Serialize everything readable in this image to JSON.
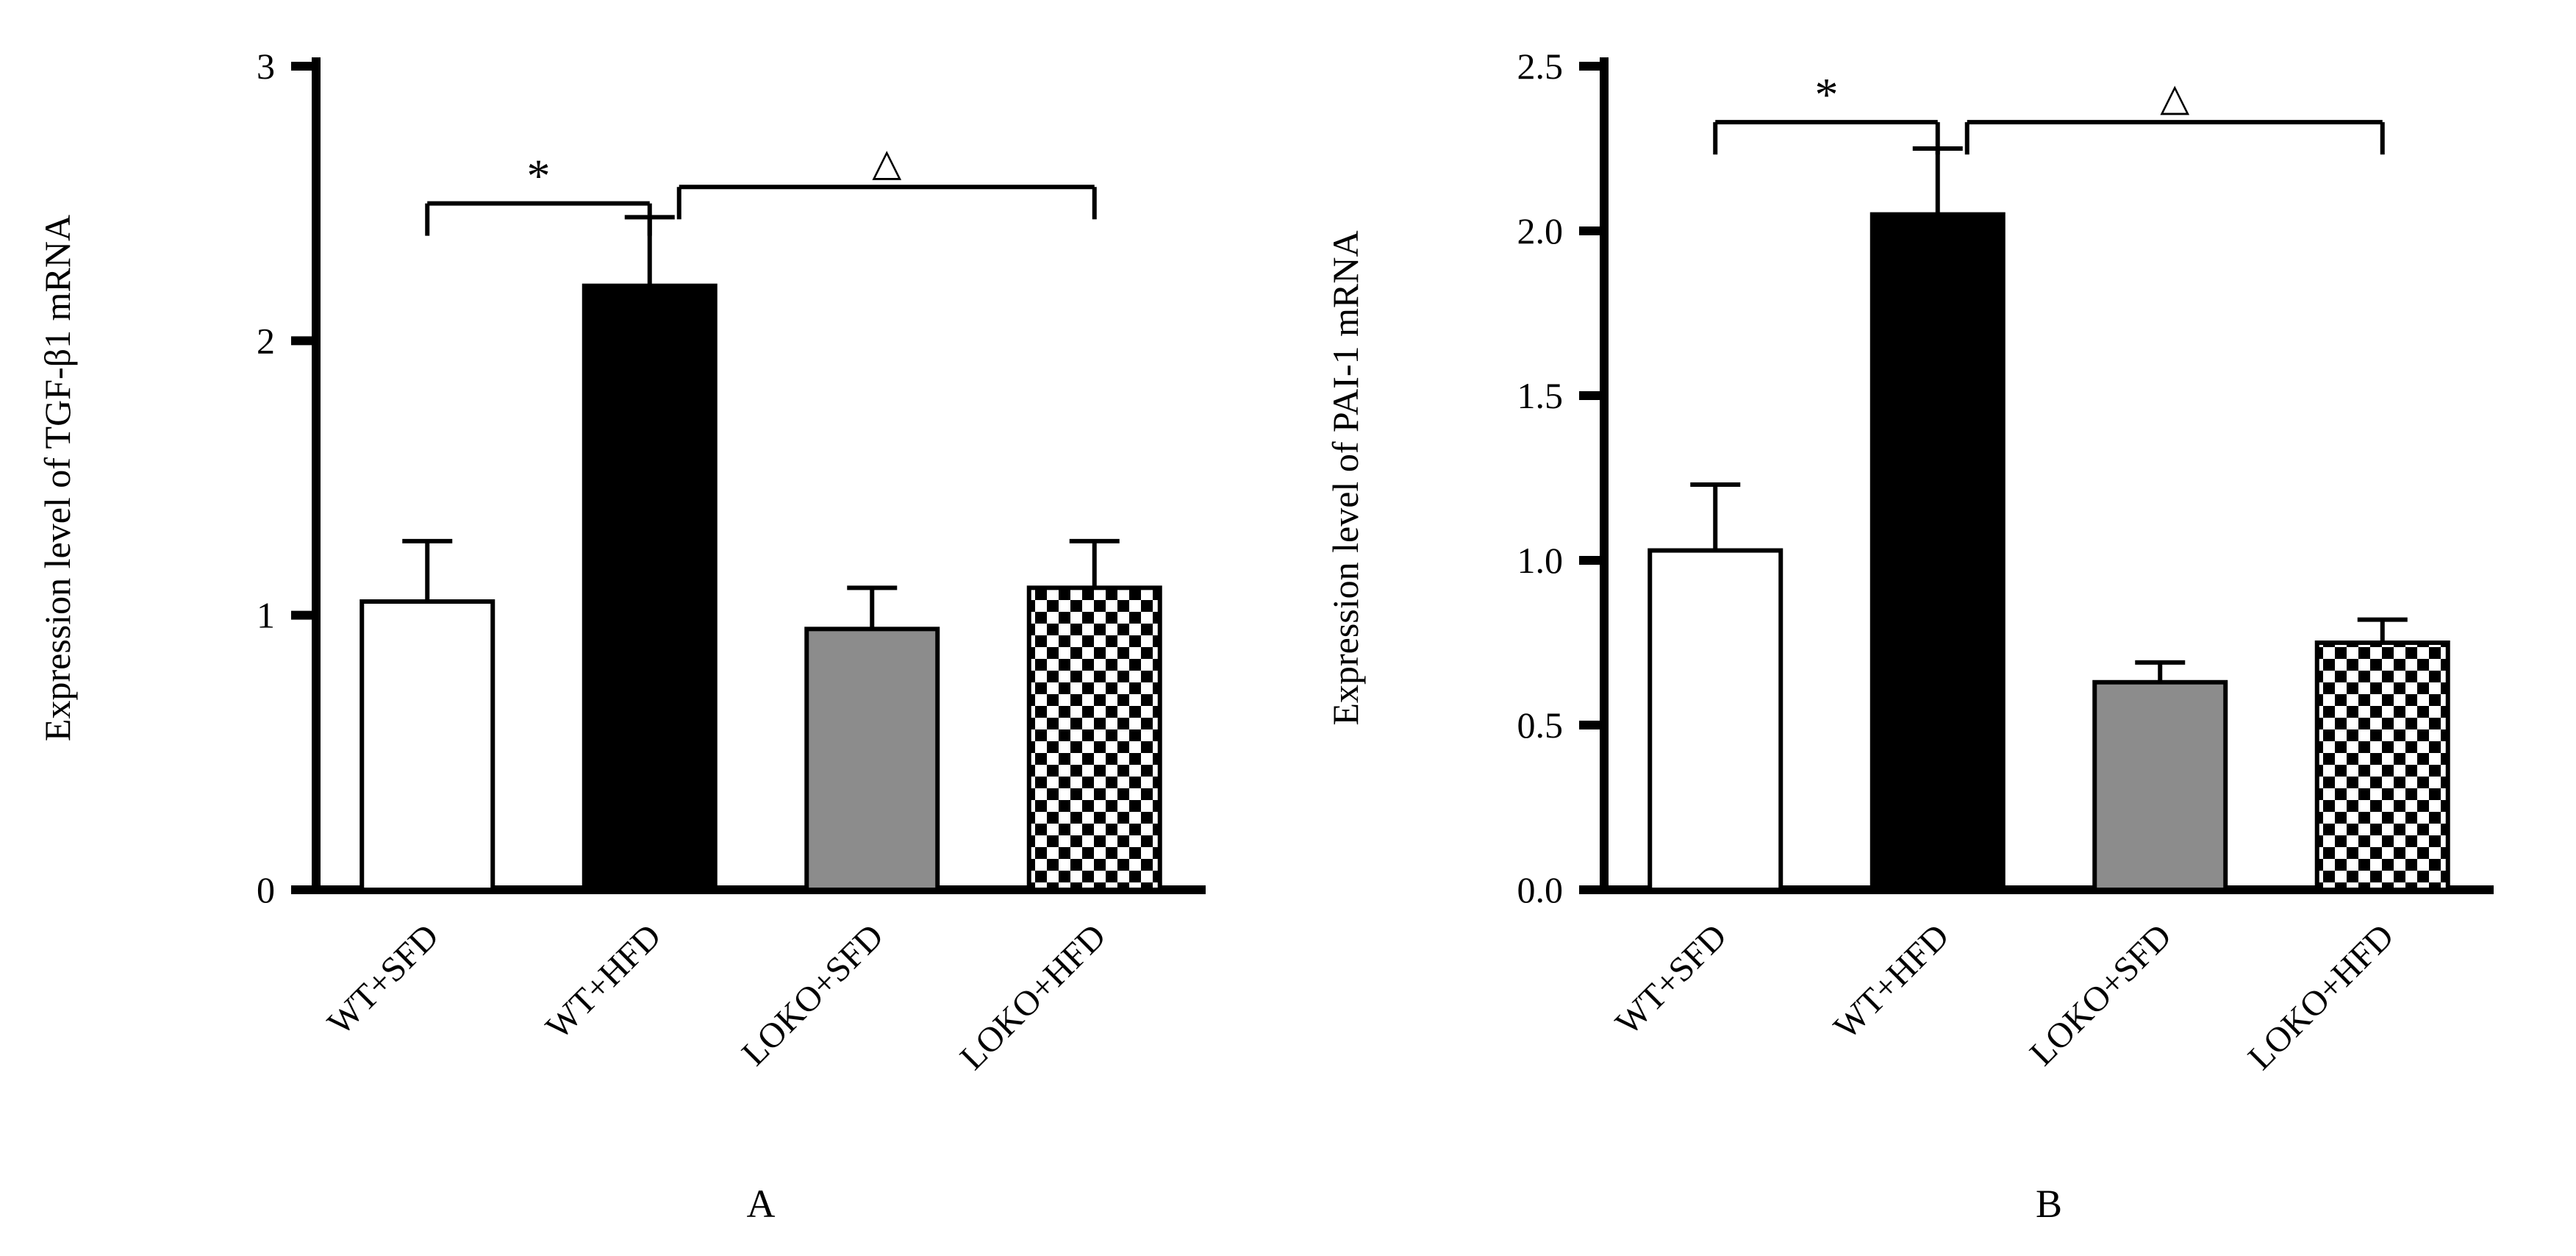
{
  "figure": {
    "background": "#ffffff"
  },
  "styles": {
    "axis_color": "#000000",
    "bar_outline": "#000000",
    "gray_fill": "#8c8c8c",
    "white_fill": "#ffffff",
    "black_fill": "#000000"
  },
  "chart_data": [
    {
      "type": "bar",
      "panel_label": "A",
      "title": "",
      "xlabel": "",
      "ylabel": "Expression level of TGF-β1 mRNA",
      "categories": [
        "WT+SFD",
        "WT+HFD",
        "LOKO+SFD",
        "LOKO+HFD"
      ],
      "values": [
        1.05,
        2.2,
        0.95,
        1.1
      ],
      "errors": [
        0.22,
        0.25,
        0.15,
        0.17
      ],
      "ylim": [
        0,
        3
      ],
      "yticks": [
        0,
        1,
        2,
        3
      ],
      "ytick_labels": [
        "0",
        "1",
        "2",
        "3"
      ],
      "bar_styles": [
        "white",
        "black",
        "gray",
        "checker"
      ],
      "annotations": [
        {
          "symbol": "*",
          "from": 0,
          "to": 1,
          "y": 2.5
        },
        {
          "symbol": "△",
          "from": 1,
          "to": 3,
          "y": 2.56
        }
      ],
      "grid": false,
      "legend": "none"
    },
    {
      "type": "bar",
      "panel_label": "B",
      "title": "",
      "xlabel": "",
      "ylabel": "Expression level of PAI-1 mRNA",
      "categories": [
        "WT+SFD",
        "WT+HFD",
        "LOKO+SFD",
        "LOKO+HFD"
      ],
      "values": [
        1.03,
        2.05,
        0.63,
        0.75
      ],
      "errors": [
        0.2,
        0.2,
        0.06,
        0.07
      ],
      "ylim": [
        0,
        2.5
      ],
      "yticks": [
        0,
        0.5,
        1,
        1.5,
        2,
        2.5
      ],
      "ytick_labels": [
        "0.0",
        "0.5",
        "1.0",
        "1.5",
        "2.0",
        "2.5"
      ],
      "bar_styles": [
        "white",
        "black",
        "gray",
        "checker"
      ],
      "annotations": [
        {
          "symbol": "*",
          "from": 0,
          "to": 1,
          "y": 2.33
        },
        {
          "symbol": "△",
          "from": 1,
          "to": 3,
          "y": 2.33
        }
      ],
      "grid": false,
      "legend": "none"
    }
  ]
}
